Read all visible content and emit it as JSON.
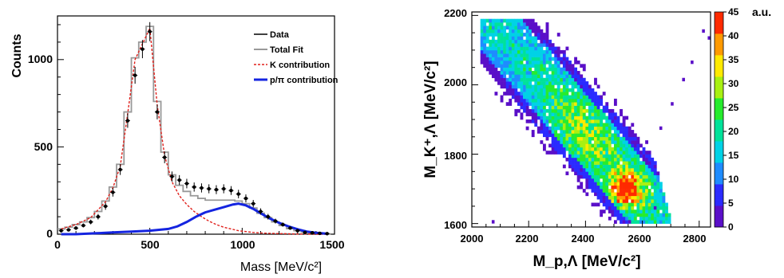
{
  "chart_data": [
    {
      "type": "line",
      "xlabel": "Mass [MeV/c²]",
      "ylabel": "Counts",
      "xlim": [
        0,
        1500
      ],
      "ylim": [
        0,
        1250
      ],
      "x_ticks": [
        "0",
        "500",
        "1000",
        "1500"
      ],
      "y_ticks": [
        "0",
        "500",
        "1000"
      ],
      "legend_position": "top-right",
      "legend": [
        {
          "label": "Data",
          "color": "#000000",
          "style": "solid"
        },
        {
          "label": "Total Fit",
          "color": "#999999",
          "style": "solid"
        },
        {
          "label": "K contribution",
          "color": "#e0201b",
          "style": "dashed"
        },
        {
          "label": "p/π contribution",
          "color": "#1424e0",
          "style": "solid"
        }
      ],
      "series": [
        {
          "name": "Data",
          "style": "points-with-errors",
          "x": [
            20,
            60,
            100,
            140,
            180,
            220,
            260,
            300,
            340,
            380,
            420,
            460,
            500,
            540,
            580,
            620,
            660,
            700,
            740,
            780,
            820,
            860,
            900,
            940,
            980,
            1020,
            1060,
            1100,
            1140,
            1180,
            1220,
            1260,
            1300,
            1340,
            1380,
            1420,
            1460
          ],
          "y": [
            20,
            25,
            35,
            50,
            70,
            100,
            160,
            240,
            370,
            650,
            910,
            1060,
            1160,
            700,
            440,
            330,
            310,
            290,
            270,
            265,
            260,
            255,
            260,
            250,
            230,
            205,
            175,
            130,
            100,
            75,
            55,
            35,
            20,
            10,
            8,
            5,
            3
          ]
        },
        {
          "name": "Total Fit",
          "style": "step",
          "x": [
            20,
            60,
            100,
            140,
            180,
            220,
            260,
            300,
            340,
            380,
            420,
            460,
            500,
            540,
            580,
            620,
            660,
            700,
            740,
            780,
            820,
            860,
            900,
            940,
            980,
            1020,
            1060,
            1100,
            1140,
            1180,
            1220,
            1260,
            1300,
            1340,
            1380,
            1420,
            1460
          ],
          "y": [
            30,
            40,
            55,
            70,
            95,
            130,
            190,
            270,
            400,
            700,
            1010,
            1100,
            1190,
            760,
            470,
            340,
            280,
            245,
            220,
            205,
            195,
            195,
            195,
            195,
            190,
            175,
            150,
            120,
            95,
            70,
            50,
            32,
            20,
            12,
            7,
            4,
            2
          ]
        },
        {
          "name": "K contribution",
          "style": "dashed",
          "x": [
            20,
            100,
            180,
            260,
            300,
            340,
            380,
            420,
            460,
            500,
            540,
            580,
            620,
            660,
            700,
            740,
            780,
            820,
            860,
            900,
            940,
            980,
            1020,
            1060,
            1100,
            1140,
            1180,
            1220,
            1260,
            1300,
            1340,
            1380,
            1420,
            1460
          ],
          "y": [
            30,
            55,
            95,
            185,
            265,
            390,
            690,
            1000,
            1090,
            1180,
            740,
            450,
            300,
            220,
            170,
            130,
            100,
            75,
            55,
            40,
            30,
            20,
            15,
            10,
            7,
            5,
            4,
            3,
            2,
            1,
            1,
            0,
            0,
            0
          ]
        },
        {
          "name": "p/π contribution",
          "style": "solid",
          "x": [
            20,
            100,
            200,
            300,
            400,
            500,
            600,
            650,
            700,
            750,
            800,
            850,
            900,
            950,
            980,
            1020,
            1060,
            1100,
            1150,
            1200,
            1250,
            1300,
            1350,
            1400,
            1460
          ],
          "y": [
            0,
            0,
            5,
            10,
            15,
            20,
            30,
            45,
            70,
            100,
            125,
            140,
            155,
            170,
            175,
            165,
            145,
            120,
            90,
            65,
            45,
            28,
            15,
            8,
            3
          ]
        }
      ]
    },
    {
      "type": "heatmap",
      "xlabel": "M_p,Λ [MeV/c²]",
      "ylabel": "M_K⁺,Λ [MeV/c²]",
      "xlim": [
        2000,
        2840
      ],
      "ylim": [
        1590,
        2210
      ],
      "x_ticks": [
        "2000",
        "2200",
        "2400",
        "2600",
        "2800"
      ],
      "y_ticks": [
        "1600",
        "1800",
        "2000",
        "2200"
      ],
      "z_label": "a.u.",
      "z_range": [
        0,
        45
      ],
      "z_ticks": [
        "0",
        "5",
        "10",
        "15",
        "20",
        "25",
        "30",
        "35",
        "40",
        "45"
      ],
      "colormap": [
        "#5a0fc8",
        "#2b2bff",
        "#1f8cff",
        "#00d2e6",
        "#00e29a",
        "#26ec2d",
        "#a8f012",
        "#ffea00",
        "#ff9a00",
        "#ff2a00"
      ],
      "peak": {
        "x": 2530,
        "y": 1690,
        "value": 45
      },
      "band_description_values": {
        "ridge_points": [
          [
            2100,
            2140
          ],
          [
            2250,
            2020
          ],
          [
            2350,
            1900
          ],
          [
            2450,
            1790
          ],
          [
            2550,
            1690
          ],
          [
            2600,
            1640
          ]
        ]
      }
    }
  ]
}
